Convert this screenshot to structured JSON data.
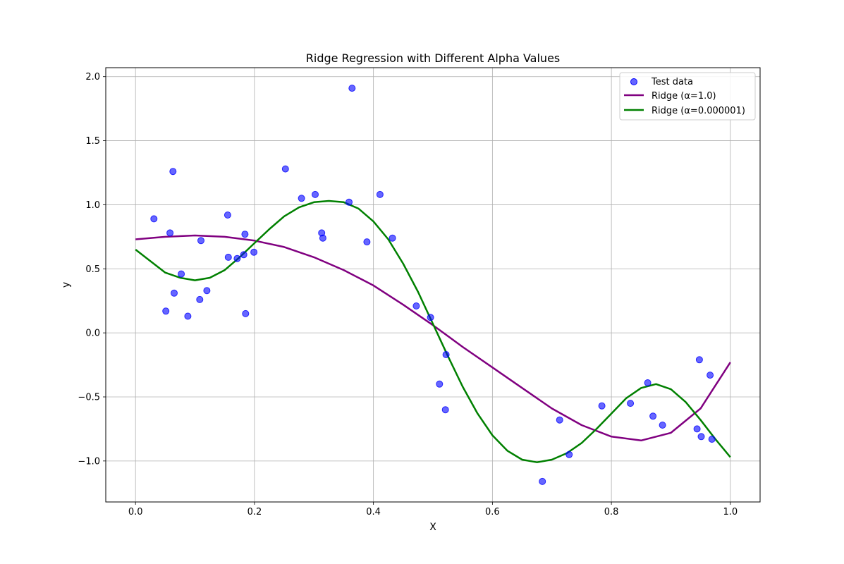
{
  "chart_data": {
    "type": "scatter",
    "title": "Ridge Regression with Different Alpha Values",
    "xlabel": "X",
    "ylabel": "y",
    "xlim": [
      -0.05,
      1.05
    ],
    "ylim": [
      -1.32,
      2.07
    ],
    "xticks": [
      0.0,
      0.2,
      0.4,
      0.6,
      0.8,
      1.0
    ],
    "xtick_labels": [
      "0.0",
      "0.2",
      "0.4",
      "0.6",
      "0.8",
      "1.0"
    ],
    "yticks": [
      -1.0,
      -0.5,
      0.0,
      0.5,
      1.0,
      1.5,
      2.0
    ],
    "ytick_labels": [
      "−1.0",
      "−0.5",
      "0.0",
      "0.5",
      "1.0",
      "1.5",
      "2.0"
    ],
    "grid": true,
    "legend_position": "top-right",
    "series": [
      {
        "name": "Test data",
        "kind": "scatter",
        "color": "#0000ff",
        "points": [
          [
            0.031,
            0.89
          ],
          [
            0.051,
            0.17
          ],
          [
            0.058,
            0.78
          ],
          [
            0.063,
            1.26
          ],
          [
            0.065,
            0.31
          ],
          [
            0.077,
            0.46
          ],
          [
            0.088,
            0.13
          ],
          [
            0.108,
            0.26
          ],
          [
            0.11,
            0.72
          ],
          [
            0.12,
            0.33
          ],
          [
            0.155,
            0.92
          ],
          [
            0.156,
            0.59
          ],
          [
            0.171,
            0.58
          ],
          [
            0.182,
            0.61
          ],
          [
            0.184,
            0.77
          ],
          [
            0.185,
            0.15
          ],
          [
            0.199,
            0.63
          ],
          [
            0.252,
            1.28
          ],
          [
            0.279,
            1.05
          ],
          [
            0.302,
            1.08
          ],
          [
            0.313,
            0.78
          ],
          [
            0.315,
            0.74
          ],
          [
            0.359,
            1.02
          ],
          [
            0.364,
            1.91
          ],
          [
            0.389,
            0.71
          ],
          [
            0.411,
            1.08
          ],
          [
            0.432,
            0.74
          ],
          [
            0.472,
            0.21
          ],
          [
            0.496,
            0.12
          ],
          [
            0.511,
            -0.4
          ],
          [
            0.521,
            -0.6
          ],
          [
            0.522,
            -0.17
          ],
          [
            0.684,
            -1.16
          ],
          [
            0.713,
            -0.68
          ],
          [
            0.729,
            -0.95
          ],
          [
            0.784,
            -0.57
          ],
          [
            0.832,
            -0.55
          ],
          [
            0.861,
            -0.39
          ],
          [
            0.87,
            -0.65
          ],
          [
            0.886,
            -0.72
          ],
          [
            0.944,
            -0.75
          ],
          [
            0.948,
            -0.21
          ],
          [
            0.951,
            -0.81
          ],
          [
            0.966,
            -0.33
          ],
          [
            0.969,
            -0.83
          ]
        ]
      },
      {
        "name": "Ridge (α=1.0)",
        "kind": "line",
        "color": "#800080",
        "points": [
          [
            0.0,
            0.73
          ],
          [
            0.05,
            0.75
          ],
          [
            0.1,
            0.76
          ],
          [
            0.15,
            0.75
          ],
          [
            0.2,
            0.72
          ],
          [
            0.25,
            0.67
          ],
          [
            0.3,
            0.59
          ],
          [
            0.35,
            0.49
          ],
          [
            0.4,
            0.37
          ],
          [
            0.45,
            0.22
          ],
          [
            0.5,
            0.06
          ],
          [
            0.55,
            -0.11
          ],
          [
            0.6,
            -0.27
          ],
          [
            0.65,
            -0.43
          ],
          [
            0.7,
            -0.59
          ],
          [
            0.75,
            -0.72
          ],
          [
            0.8,
            -0.81
          ],
          [
            0.85,
            -0.84
          ],
          [
            0.9,
            -0.78
          ],
          [
            0.95,
            -0.59
          ],
          [
            1.0,
            -0.23
          ]
        ]
      },
      {
        "name": "Ridge (α=0.000001)",
        "kind": "line",
        "color": "#008000",
        "points": [
          [
            0.0,
            0.65
          ],
          [
            0.025,
            0.56
          ],
          [
            0.05,
            0.47
          ],
          [
            0.075,
            0.43
          ],
          [
            0.1,
            0.41
          ],
          [
            0.125,
            0.43
          ],
          [
            0.15,
            0.49
          ],
          [
            0.175,
            0.59
          ],
          [
            0.2,
            0.7
          ],
          [
            0.225,
            0.81
          ],
          [
            0.25,
            0.91
          ],
          [
            0.275,
            0.98
          ],
          [
            0.3,
            1.02
          ],
          [
            0.325,
            1.03
          ],
          [
            0.35,
            1.02
          ],
          [
            0.375,
            0.97
          ],
          [
            0.4,
            0.87
          ],
          [
            0.425,
            0.73
          ],
          [
            0.45,
            0.54
          ],
          [
            0.475,
            0.32
          ],
          [
            0.5,
            0.07
          ],
          [
            0.525,
            -0.18
          ],
          [
            0.55,
            -0.42
          ],
          [
            0.575,
            -0.63
          ],
          [
            0.6,
            -0.8
          ],
          [
            0.625,
            -0.92
          ],
          [
            0.65,
            -0.99
          ],
          [
            0.675,
            -1.01
          ],
          [
            0.7,
            -0.99
          ],
          [
            0.725,
            -0.94
          ],
          [
            0.75,
            -0.86
          ],
          [
            0.775,
            -0.75
          ],
          [
            0.8,
            -0.63
          ],
          [
            0.825,
            -0.51
          ],
          [
            0.85,
            -0.43
          ],
          [
            0.875,
            -0.4
          ],
          [
            0.9,
            -0.44
          ],
          [
            0.925,
            -0.54
          ],
          [
            0.95,
            -0.68
          ],
          [
            0.975,
            -0.83
          ],
          [
            1.0,
            -0.97
          ]
        ]
      }
    ]
  }
}
